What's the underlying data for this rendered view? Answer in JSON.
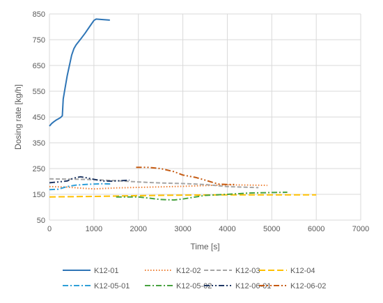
{
  "chart_data": {
    "type": "line",
    "title": "",
    "xlabel": "Time [s]",
    "ylabel": "Dosing rate [kg/h]",
    "xlim": [
      0,
      7000
    ],
    "ylim": [
      50,
      850
    ],
    "x_ticks": [
      0,
      1000,
      2000,
      3000,
      4000,
      5000,
      6000,
      7000
    ],
    "y_ticks": [
      50,
      150,
      250,
      350,
      450,
      550,
      650,
      750,
      850
    ],
    "x_tick_labels": [
      "0",
      "1000",
      "2000",
      "3000",
      "4000",
      "5000",
      "6000",
      "7000"
    ],
    "y_tick_labels": [
      "50",
      "150",
      "250",
      "350",
      "450",
      "550",
      "650",
      "750",
      "850"
    ],
    "grid": "vertical and horizontal major gridlines",
    "legend_position": "bottom",
    "series": [
      {
        "name": "K12-01",
        "color": "#2E75B6",
        "style": "solid",
        "x": [
          0,
          50,
          100,
          150,
          200,
          250,
          290,
          300,
          310,
          350,
          400,
          450,
          500,
          550,
          600,
          700,
          800,
          900,
          1000,
          1050,
          1200,
          1360
        ],
        "y": [
          415,
          425,
          432,
          438,
          443,
          448,
          455,
          490,
          520,
          560,
          610,
          650,
          690,
          715,
          730,
          752,
          775,
          800,
          825,
          830,
          828,
          826
        ]
      },
      {
        "name": "K12-02",
        "color": "#ED7D31",
        "style": "dot",
        "x": [
          0,
          400,
          700,
          1000,
          1500,
          2000,
          2500,
          3000,
          3500,
          4000,
          4500,
          4900
        ],
        "y": [
          180,
          178,
          174,
          171,
          175,
          177,
          179,
          181,
          184,
          187,
          186,
          185
        ]
      },
      {
        "name": "K12-03",
        "color": "#A5A5A5",
        "style": "dash",
        "x": [
          0,
          500,
          1000,
          1500,
          2000,
          2500,
          3000,
          3500,
          4000,
          4700
        ],
        "y": [
          210,
          209,
          207,
          203,
          198,
          194,
          192,
          188,
          180,
          176
        ]
      },
      {
        "name": "K12-04",
        "color": "#FFC000",
        "style": "longdash",
        "x": [
          0,
          1000,
          2000,
          3000,
          4000,
          5000,
          6000
        ],
        "y": [
          140,
          142,
          145,
          147,
          148,
          148,
          148
        ]
      },
      {
        "name": "K12-05-01",
        "color": "#2E9FD8",
        "style": "dashdot",
        "x": [
          0,
          200,
          400,
          600,
          800,
          1000,
          1200,
          1400
        ],
        "y": [
          168,
          170,
          180,
          186,
          188,
          190,
          191,
          190
        ]
      },
      {
        "name": "K12-05-02",
        "color": "#48A23F",
        "style": "dashdot",
        "x": [
          1500,
          2000,
          2500,
          2800,
          3000,
          3500,
          4000,
          4500,
          5000,
          5350
        ],
        "y": [
          140,
          140,
          130,
          128,
          132,
          146,
          150,
          155,
          157,
          158
        ]
      },
      {
        "name": "K12-06-01",
        "color": "#203864",
        "style": "dashdotdot",
        "x": [
          0,
          200,
          400,
          500,
          600,
          700,
          800,
          900,
          1000,
          1200,
          1400,
          1600,
          1800
        ],
        "y": [
          195,
          198,
          202,
          210,
          215,
          218,
          215,
          212,
          208,
          202,
          201,
          203,
          205
        ]
      },
      {
        "name": "K12-06-02",
        "color": "#C55A11",
        "style": "dashdotdot",
        "x": [
          1950,
          2200,
          2500,
          2800,
          3000,
          3300,
          3500,
          3700,
          3800,
          4000,
          4200
        ],
        "y": [
          255,
          255,
          250,
          238,
          225,
          215,
          205,
          195,
          190,
          188,
          188
        ]
      }
    ]
  }
}
